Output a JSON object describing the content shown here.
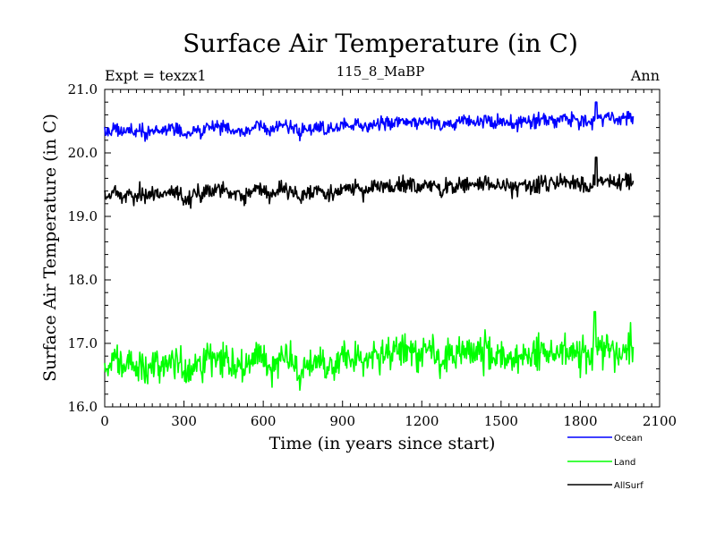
{
  "chart_data": {
    "type": "line",
    "title": "Surface Air Temperature (in C)",
    "left_label": "Expt = texzx1",
    "center_label": "115_8_MaBP",
    "right_label": "Ann",
    "xlabel": "Time (in years since start)",
    "ylabel": "Surface Air Temperature (in C)",
    "xlim": [
      0,
      2100
    ],
    "ylim": [
      16.0,
      21.0
    ],
    "x_ticks": [
      0,
      300,
      600,
      900,
      1200,
      1500,
      1800,
      2100
    ],
    "y_ticks": [
      "16.0",
      "17.0",
      "18.0",
      "19.0",
      "20.0",
      "21.0"
    ],
    "x_range_data": [
      0,
      2000
    ],
    "series": [
      {
        "name": "Ocean",
        "color": "#0000ff",
        "start_mean": 20.33,
        "end_mean": 20.55,
        "noise_amplitude": 0.09,
        "peak_value": 20.8,
        "peak_year": 1860
      },
      {
        "name": "Land",
        "color": "#00ff00",
        "start_mean": 16.65,
        "end_mean": 16.9,
        "noise_amplitude": 0.22,
        "peak_value": 17.5,
        "peak_year": 1855
      },
      {
        "name": "AllSurf",
        "color": "#000000",
        "start_mean": 19.33,
        "end_mean": 19.55,
        "noise_amplitude": 0.11,
        "peak_value": 19.93,
        "peak_year": 1860
      }
    ],
    "legend_placement": "bottom-right"
  }
}
